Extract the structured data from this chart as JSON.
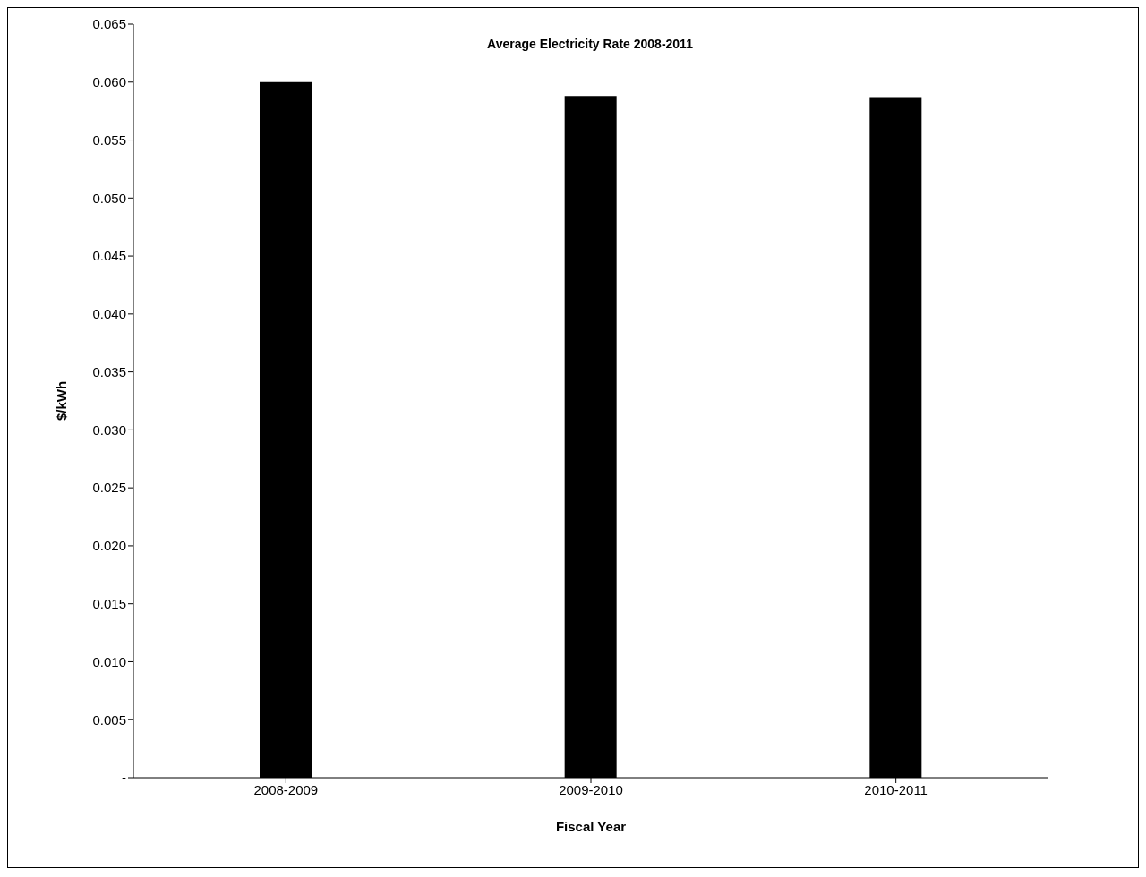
{
  "chart_data": {
    "type": "bar",
    "title": "Average Electricity Rate 2008-2011",
    "xlabel": "Fiscal Year",
    "ylabel": "$/kWh",
    "categories": [
      "2008-2009",
      "2009-2010",
      "2010-2011"
    ],
    "values": [
      0.06,
      0.0588,
      0.0587
    ],
    "color": "#000000",
    "ylim": [
      0,
      0.065
    ],
    "yticks": [
      {
        "value": 0,
        "label": "-"
      },
      0.005,
      {
        "value": 0.01,
        "label": "0.010"
      },
      0.015,
      {
        "value": 0.02,
        "label": "0.020"
      },
      0.025,
      {
        "value": 0.03,
        "label": "0.030"
      },
      0.035,
      {
        "value": 0.04,
        "label": "0.040"
      },
      0.045,
      {
        "value": 0.05,
        "label": "0.050"
      },
      0.055,
      {
        "value": 0.06,
        "label": "0.060"
      },
      0.065
    ],
    "grid": false
  }
}
